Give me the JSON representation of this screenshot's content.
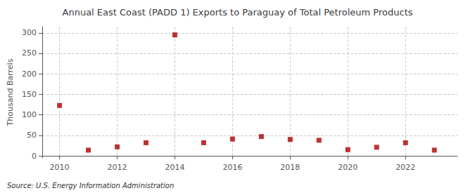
{
  "chart_data": {
    "type": "scatter",
    "title": "Annual East Coast (PADD 1) Exports to Paraguay of Total Petroleum Products",
    "ylabel": "Thousand Barrels",
    "annotation": "Source: U.S. Energy Information Administration",
    "x": [
      2010,
      2011,
      2012,
      2013,
      2014,
      2015,
      2016,
      2017,
      2018,
      2019,
      2020,
      2021,
      2022,
      2023
    ],
    "values": [
      123,
      14,
      22,
      32,
      295,
      32,
      41,
      47,
      40,
      38,
      15,
      21,
      32,
      14
    ],
    "color": "#AA0000",
    "marker": "square",
    "xlim": [
      2009.4,
      2023.8
    ],
    "xticks": [
      2010,
      2012,
      2014,
      2016,
      2018,
      2020,
      2022
    ],
    "ylim": [
      -5,
      315
    ],
    "yticks": [
      0,
      50,
      100,
      150,
      200,
      250,
      300
    ],
    "grid": true
  }
}
